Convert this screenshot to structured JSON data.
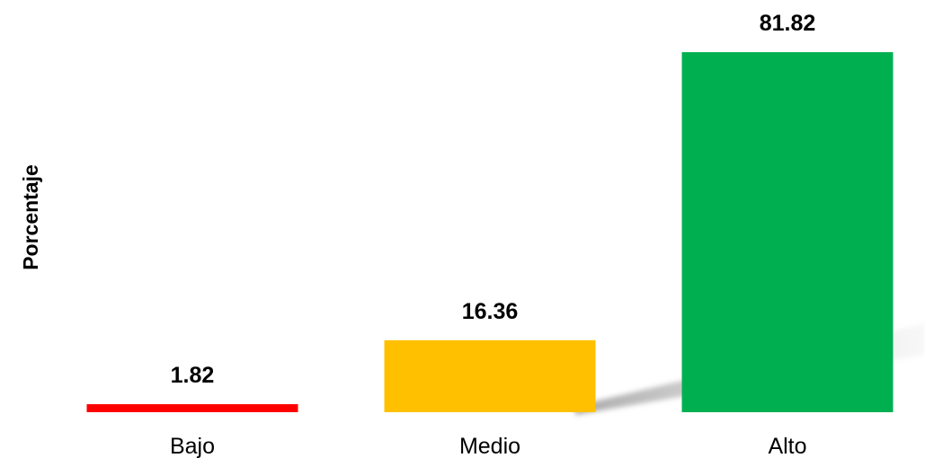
{
  "chart_data": {
    "type": "bar",
    "title": "",
    "xlabel": "",
    "ylabel": "Porcentaje",
    "categories": [
      "Bajo",
      "Medio",
      "Alto"
    ],
    "values": [
      1.82,
      16.36,
      81.82
    ],
    "value_labels": [
      "1.82",
      "16.36",
      "81.82"
    ],
    "colors": [
      "#ff0000",
      "#ffc000",
      "#00b050"
    ],
    "ylim": [
      0,
      100
    ],
    "grid": false,
    "legend": "none"
  }
}
